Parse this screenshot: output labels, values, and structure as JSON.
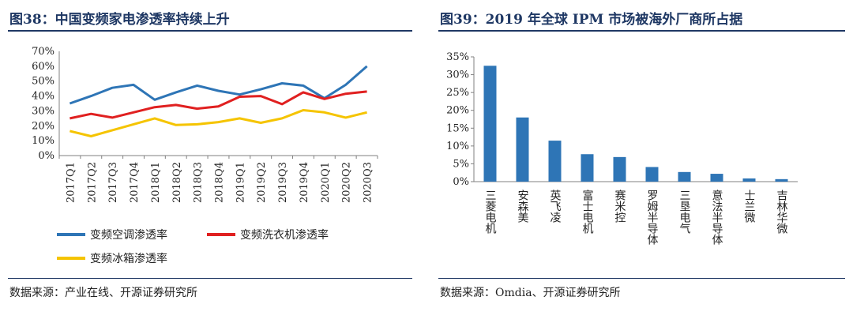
{
  "left": {
    "title": "图38：中国变频家电渗透率持续上升",
    "source": "数据来源：产业在线、开源证券研究所"
  },
  "right": {
    "title": "图39：2019 年全球 IPM 市场被海外厂商所占据",
    "source": "数据来源：Omdia、开源证券研究所"
  },
  "chart_data": [
    {
      "type": "line",
      "title": "图38：中国变频家电渗透率持续上升",
      "x": [
        "2017Q1",
        "2017Q2",
        "2017Q3",
        "2017Q4",
        "2018Q1",
        "2018Q2",
        "2018Q3",
        "2018Q4",
        "2019Q1",
        "2019Q2",
        "2019Q3",
        "2019Q4",
        "2020Q1",
        "2020Q2",
        "2020Q3"
      ],
      "yticks": [
        "0%",
        "10%",
        "20%",
        "30%",
        "40%",
        "50%",
        "60%",
        "70%"
      ],
      "ylim": [
        0,
        70
      ],
      "series": [
        {
          "name": "变频空调渗透率",
          "color": "#2e75b6",
          "values": [
            35,
            40,
            45.5,
            47.5,
            37.5,
            42.5,
            47,
            43.5,
            41,
            44.5,
            48.5,
            47,
            38.5,
            47.5,
            60
          ]
        },
        {
          "name": "变频洗衣机渗透率",
          "color": "#e02020",
          "values": [
            25,
            28,
            25.5,
            29,
            32.5,
            34,
            31.5,
            33,
            39.5,
            40,
            34.5,
            42.5,
            38,
            41.5,
            43
          ]
        },
        {
          "name": "变频冰箱渗透率",
          "color": "#f5c400",
          "values": [
            16.5,
            13,
            17,
            21,
            25,
            20.5,
            21,
            22.5,
            25,
            22,
            25,
            30.5,
            29,
            25.5,
            29
          ]
        }
      ]
    },
    {
      "type": "bar",
      "title": "图39：2019 年全球 IPM 市场被海外厂商所占据",
      "categories": [
        "三菱电机",
        "安森美",
        "英飞凌",
        "富士电机",
        "赛米控",
        "罗姆半导体",
        "三垦电气",
        "意法半导体",
        "士兰微",
        "吉林华微"
      ],
      "values": [
        32.5,
        18,
        11.5,
        7.7,
        6.9,
        4.1,
        2.7,
        2.2,
        0.9,
        0.7
      ],
      "yticks": [
        "0%",
        "5%",
        "10%",
        "15%",
        "20%",
        "25%",
        "30%",
        "35%"
      ],
      "ylim": [
        0,
        35
      ],
      "color": "#2e75b6"
    }
  ]
}
